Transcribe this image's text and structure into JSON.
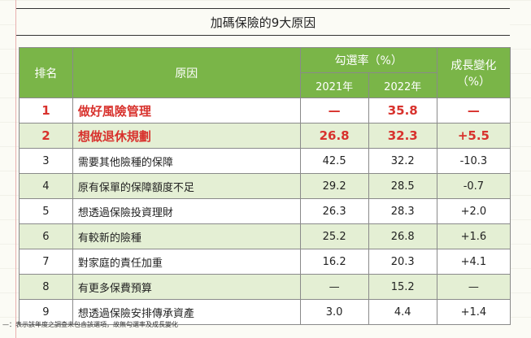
{
  "title": "加碼保險的9大原因",
  "headers": {
    "rank": "排名",
    "reason": "原因",
    "rate_group": "勾選率（%）",
    "year1": "2021年",
    "year2": "2022年",
    "change_line1": "成長變化",
    "change_line2": "（%）"
  },
  "rows": [
    {
      "rank": "1",
      "reason": "做好風險管理",
      "y2021": "—",
      "y2022": "35.8",
      "change": "—"
    },
    {
      "rank": "2",
      "reason": "想做退休規劃",
      "y2021": "26.8",
      "y2022": "32.3",
      "change": "+5.5"
    },
    {
      "rank": "3",
      "reason": "需要其他險種的保障",
      "y2021": "42.5",
      "y2022": "32.2",
      "change": "-10.3"
    },
    {
      "rank": "4",
      "reason": "原有保單的保障額度不足",
      "y2021": "29.2",
      "y2022": "28.5",
      "change": "-0.7"
    },
    {
      "rank": "5",
      "reason": "想透過保險投資理財",
      "y2021": "26.3",
      "y2022": "28.3",
      "change": "+2.0"
    },
    {
      "rank": "6",
      "reason": "有較新的險種",
      "y2021": "25.2",
      "y2022": "26.8",
      "change": "+1.6"
    },
    {
      "rank": "7",
      "reason": "對家庭的責任加重",
      "y2021": "16.2",
      "y2022": "20.3",
      "change": "+4.1"
    },
    {
      "rank": "8",
      "reason": "有更多保費預算",
      "y2021": "—",
      "y2022": "15.2",
      "change": "—"
    },
    {
      "rank": "9",
      "reason": "想透過保險安排傳承資產",
      "y2021": "3.0",
      "y2022": "4.4",
      "change": "+1.4"
    }
  ],
  "footnote": "—：表示該年度之調查未包含該選項，故無勾選率及成長變化",
  "colors": {
    "header_green": "#7ab548",
    "highlight_red": "#d8322d",
    "row_shade": "#e4efd4"
  }
}
